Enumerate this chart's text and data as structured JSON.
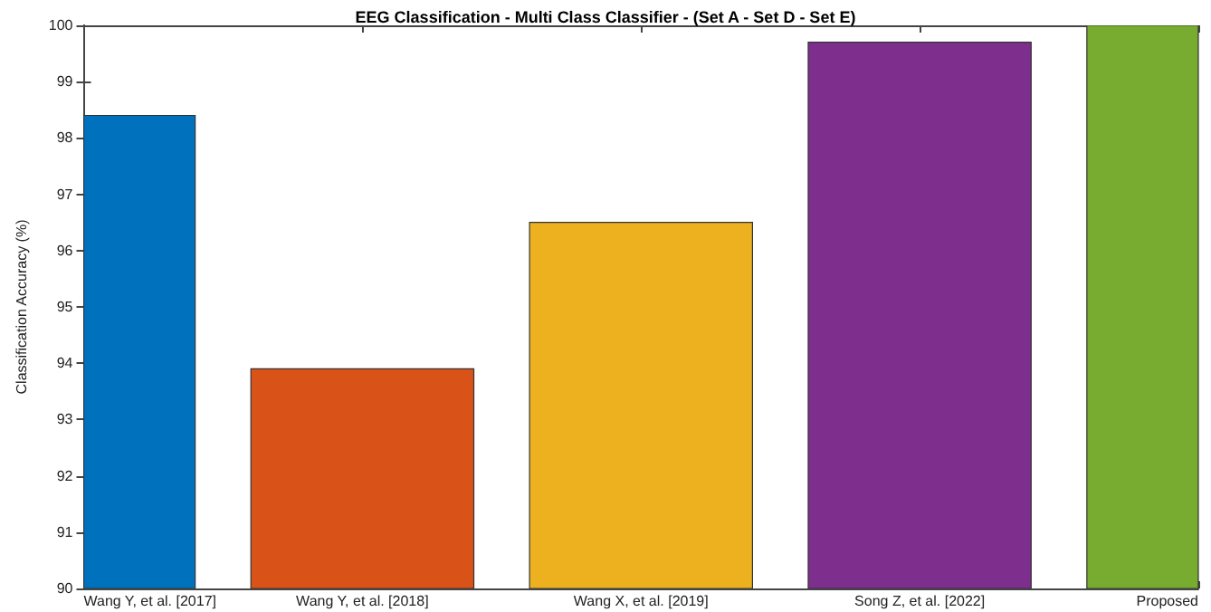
{
  "chart_data": {
    "type": "bar",
    "title": "EEG Classification - Multi Class Classifier - (Set A - Set D - Set E)",
    "ylabel": "Classification Accuracy (%)",
    "categories": [
      "Wang Y, et al. [2017]",
      "Wang Y, et al. [2018]",
      "Wang X, et al. [2019]",
      "Song Z, et al. [2022]",
      "Proposed"
    ],
    "values": [
      98.4,
      93.9,
      96.5,
      99.7,
      100
    ],
    "colors": [
      "#0072bd",
      "#d95319",
      "#edb120",
      "#7e2f8e",
      "#77ac30"
    ],
    "ylim": [
      90,
      100
    ],
    "yticks": [
      90,
      91,
      92,
      93,
      94,
      95,
      96,
      97,
      98,
      99,
      100
    ],
    "grid": false
  }
}
